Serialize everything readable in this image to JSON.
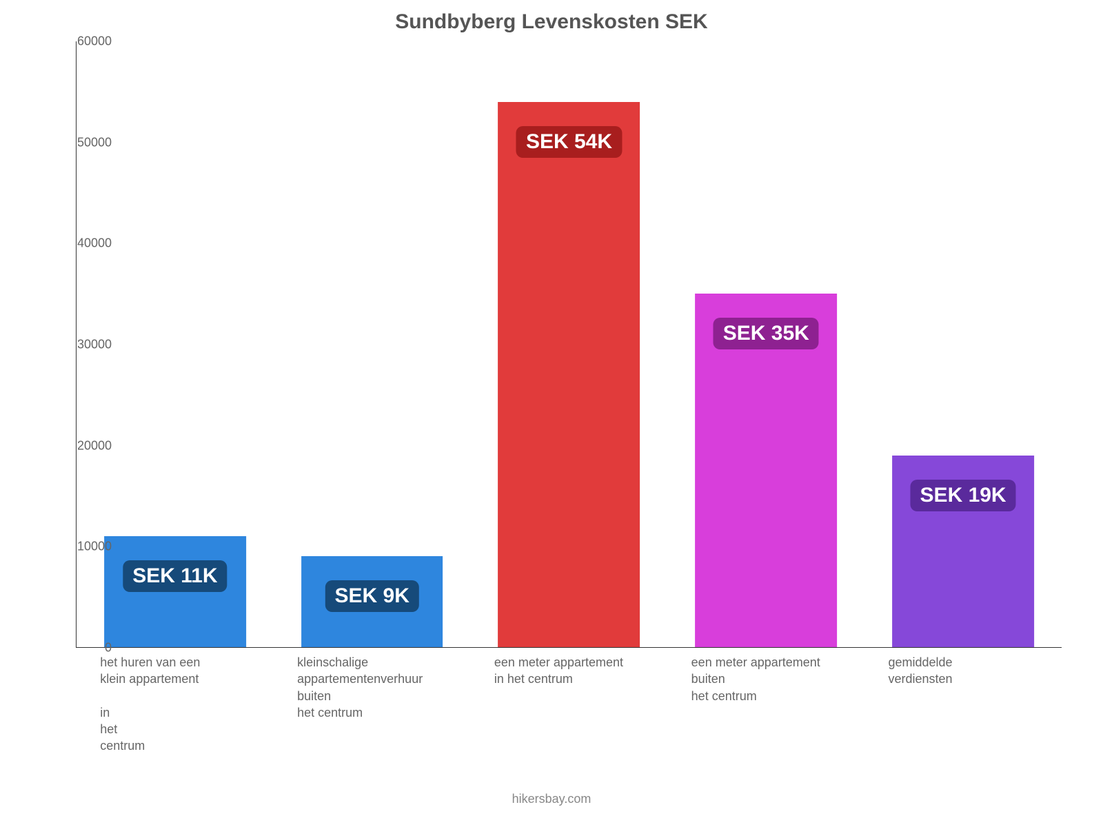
{
  "chart": {
    "type": "bar",
    "title": "Sundbyberg Levenskosten SEK",
    "title_fontsize": 30,
    "title_color": "#555555",
    "background_color": "#ffffff",
    "axis_line_color": "#333333",
    "tick_label_color": "#666666",
    "tick_label_fontsize": 18,
    "xlabel_fontsize": 18,
    "xlabel_color": "#666666",
    "ylim": [
      0,
      60000
    ],
    "ytick_step": 10000,
    "yticks": [
      "0",
      "10000",
      "20000",
      "30000",
      "40000",
      "50000",
      "60000"
    ],
    "bar_width_pct": 72,
    "value_label_fontsize": 30,
    "value_badge_radius": 10,
    "slots": [
      {
        "value": 11000,
        "value_label": "SEK 11K",
        "bar_color": "#2e86de",
        "badge_bg": "#164a7a",
        "xlabel": "het huren van een\nklein appartement\n\nin\nhet\ncentrum"
      },
      {
        "value": 9000,
        "value_label": "SEK 9K",
        "bar_color": "#2e86de",
        "badge_bg": "#164a7a",
        "xlabel": "kleinschalige\nappartementenverhuur\nbuiten\nhet centrum"
      },
      {
        "value": 54000,
        "value_label": "SEK 54K",
        "bar_color": "#e13b3b",
        "badge_bg": "#a81e1e",
        "xlabel": "een meter appartement\nin het centrum"
      },
      {
        "value": 35000,
        "value_label": "SEK 35K",
        "bar_color": "#d83edb",
        "badge_bg": "#8e2191",
        "xlabel": "een meter appartement\nbuiten\nhet centrum"
      },
      {
        "value": 19000,
        "value_label": "SEK 19K",
        "bar_color": "#8648d9",
        "badge_bg": "#5a2a9c",
        "xlabel": "gemiddelde\nverdiensten"
      }
    ]
  },
  "footer": {
    "text": "hikersbay.com",
    "color": "#888888",
    "fontsize": 18
  }
}
